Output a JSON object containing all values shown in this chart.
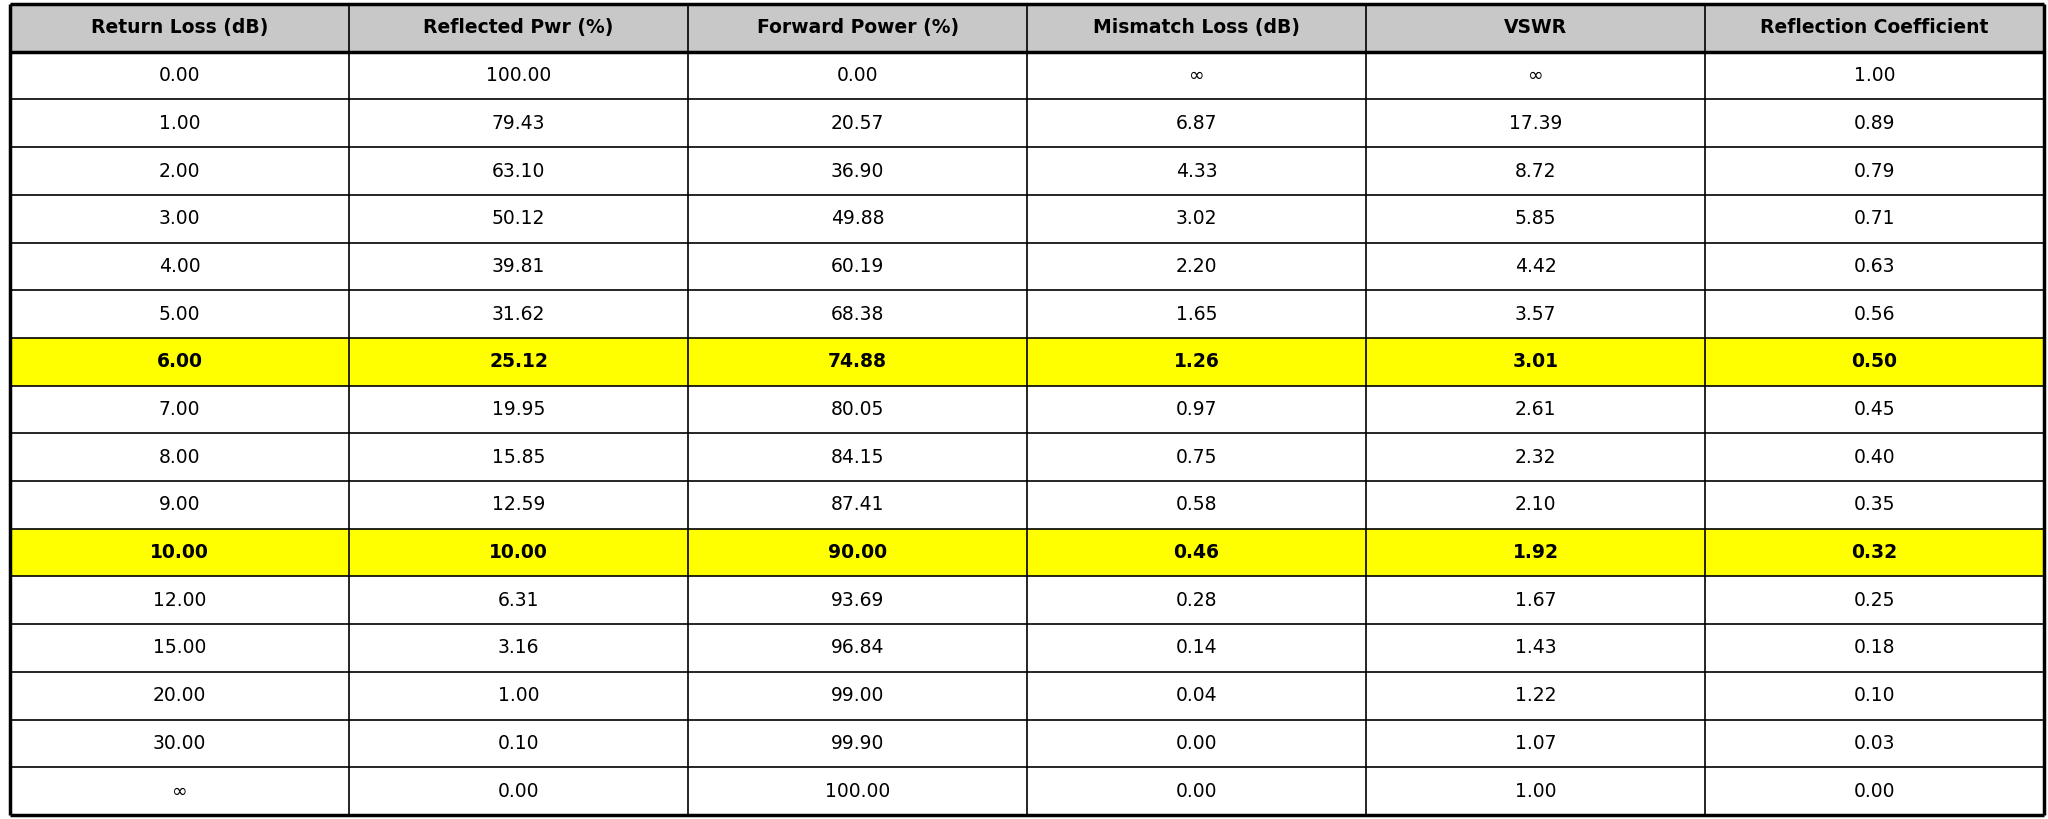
{
  "columns": [
    "Return Loss (dB)",
    "Reflected Pwr (%)",
    "Forward Power (%)",
    "Mismatch Loss (dB)",
    "VSWR",
    "Reflection Coefficient"
  ],
  "rows": [
    [
      "0.00",
      "100.00",
      "0.00",
      "∞",
      "∞",
      "1.00"
    ],
    [
      "1.00",
      "79.43",
      "20.57",
      "6.87",
      "17.39",
      "0.89"
    ],
    [
      "2.00",
      "63.10",
      "36.90",
      "4.33",
      "8.72",
      "0.79"
    ],
    [
      "3.00",
      "50.12",
      "49.88",
      "3.02",
      "5.85",
      "0.71"
    ],
    [
      "4.00",
      "39.81",
      "60.19",
      "2.20",
      "4.42",
      "0.63"
    ],
    [
      "5.00",
      "31.62",
      "68.38",
      "1.65",
      "3.57",
      "0.56"
    ],
    [
      "6.00",
      "25.12",
      "74.88",
      "1.26",
      "3.01",
      "0.50"
    ],
    [
      "7.00",
      "19.95",
      "80.05",
      "0.97",
      "2.61",
      "0.45"
    ],
    [
      "8.00",
      "15.85",
      "84.15",
      "0.75",
      "2.32",
      "0.40"
    ],
    [
      "9.00",
      "12.59",
      "87.41",
      "0.58",
      "2.10",
      "0.35"
    ],
    [
      "10.00",
      "10.00",
      "90.00",
      "0.46",
      "1.92",
      "0.32"
    ],
    [
      "12.00",
      "6.31",
      "93.69",
      "0.28",
      "1.67",
      "0.25"
    ],
    [
      "15.00",
      "3.16",
      "96.84",
      "0.14",
      "1.43",
      "0.18"
    ],
    [
      "20.00",
      "1.00",
      "99.00",
      "0.04",
      "1.22",
      "0.10"
    ],
    [
      "30.00",
      "0.10",
      "99.90",
      "0.00",
      "1.07",
      "0.03"
    ],
    [
      "∞",
      "0.00",
      "100.00",
      "0.00",
      "1.00",
      "0.00"
    ]
  ],
  "highlighted_rows": [
    6,
    10
  ],
  "highlight_color": "#FFFF00",
  "header_bg": "#C8C8C8",
  "header_text_color": "#000000",
  "cell_bg": "#FFFFFF",
  "border_color": "#000000",
  "font_size": 13.5,
  "header_font_size": 13.5,
  "fig_width": 20.48,
  "fig_height": 8.19,
  "outer_border_lw": 2.5,
  "inner_border_lw": 1.2
}
